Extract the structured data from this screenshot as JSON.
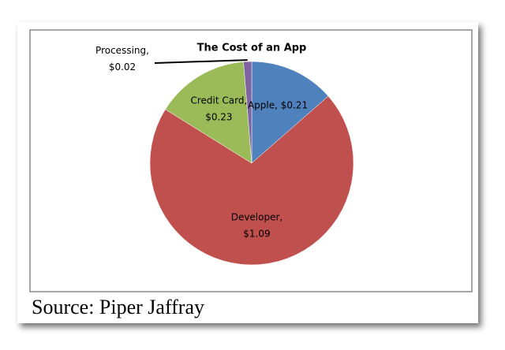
{
  "chart_data": {
    "type": "pie",
    "title": "The Cost of an App",
    "values": [
      0.21,
      1.09,
      0.23,
      0.02
    ],
    "labels": [
      [
        "Apple, $0.21"
      ],
      [
        "Developer,",
        "$1.09"
      ],
      [
        "Credit Card,",
        "$0.23"
      ],
      [
        "Processing,",
        "$0.02"
      ]
    ],
    "colors": [
      "#4f81bd",
      "#c0504d",
      "#9bbb59",
      "#8064a2"
    ],
    "source": "Source: Piper Jaffray"
  }
}
